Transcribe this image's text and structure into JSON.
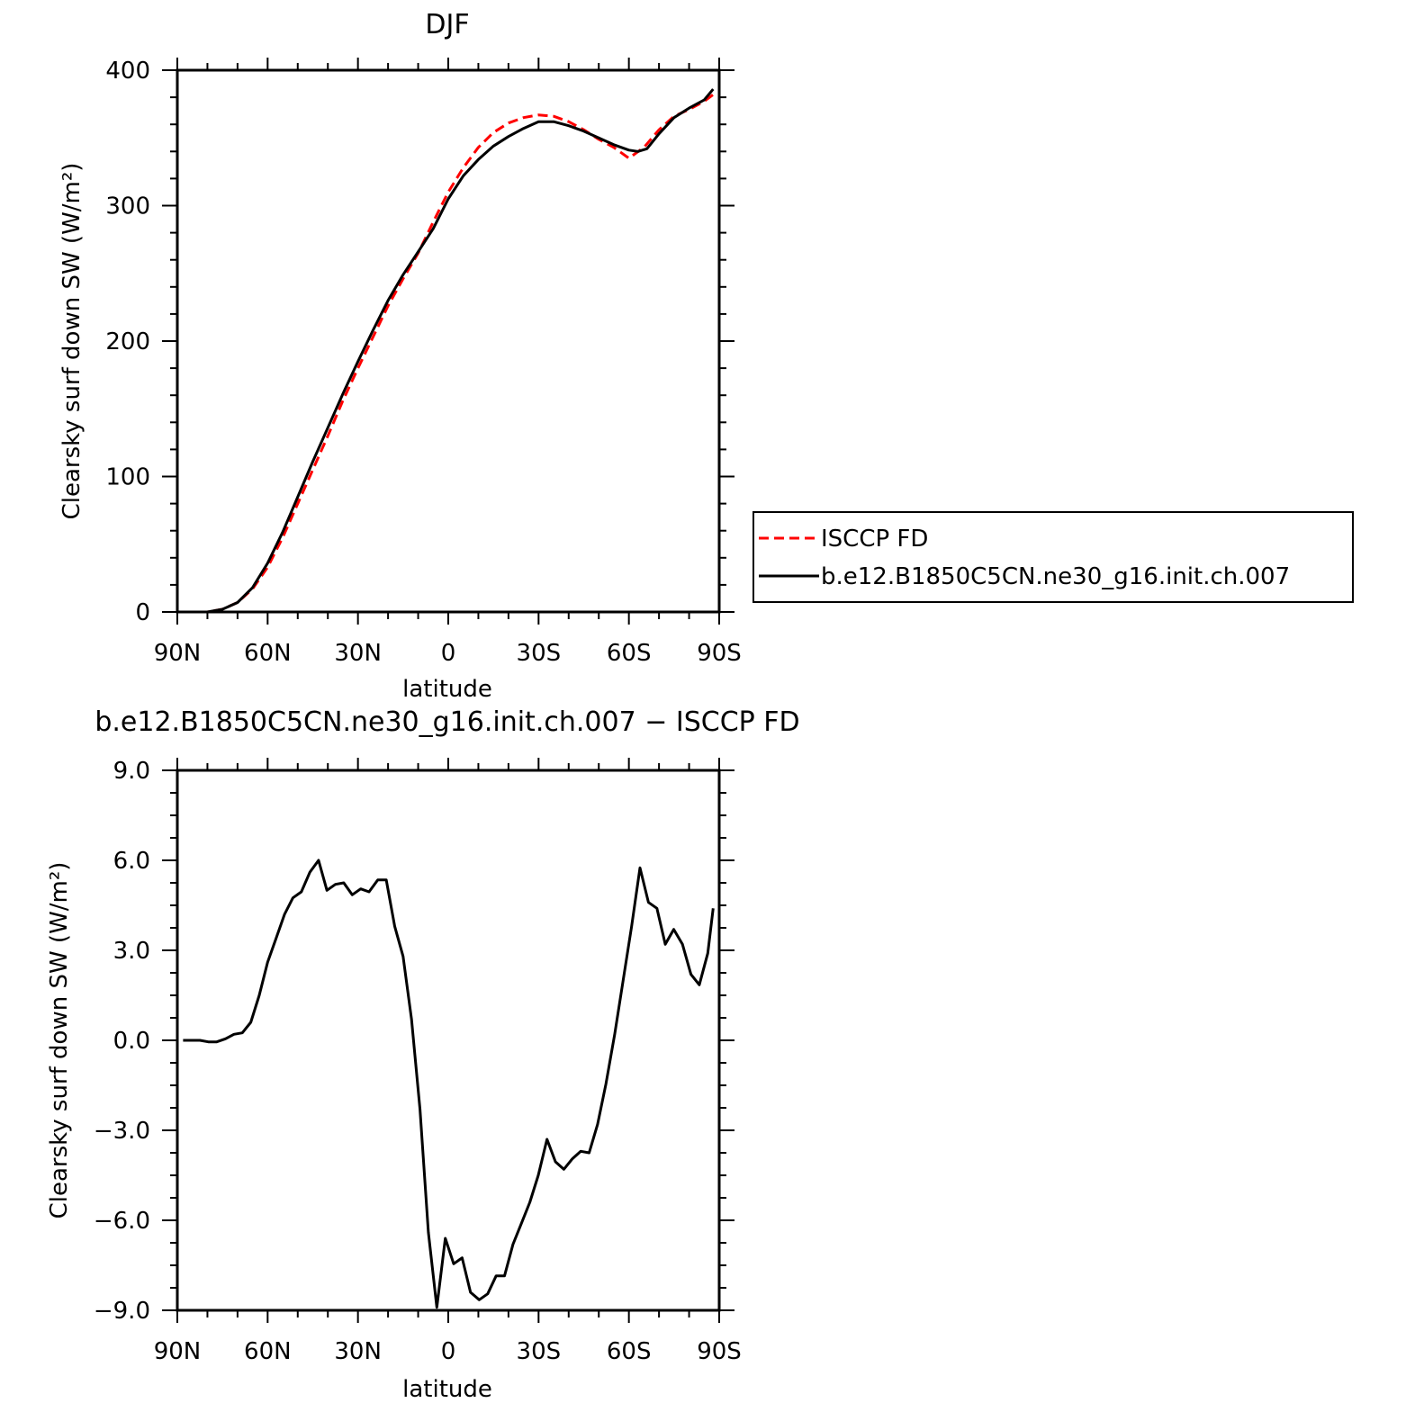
{
  "chart_data": [
    {
      "type": "line",
      "title": "DJF",
      "xlabel": "latitude",
      "ylabel": "Clearsky surf down SW (W/m²)",
      "xlim": [
        90,
        -90
      ],
      "ylim": [
        0,
        400
      ],
      "xticks": [
        "90N",
        "60N",
        "30N",
        "0",
        "30S",
        "60S",
        "90S"
      ],
      "yticks": [
        "0",
        "100",
        "200",
        "300",
        "400"
      ],
      "legend": "right",
      "series": [
        {
          "name": "ISCCP FD",
          "color": "#ff0000",
          "dash": "dashed",
          "x": [
            88,
            85,
            80,
            75,
            70,
            65,
            60,
            55,
            50,
            45,
            40,
            35,
            30,
            25,
            20,
            15,
            10,
            5,
            0,
            -5,
            -10,
            -15,
            -20,
            -25,
            -30,
            -35,
            -40,
            -45,
            -50,
            -55,
            -60,
            -65,
            -70,
            -75,
            -80,
            -85,
            -88
          ],
          "y": [
            0,
            0,
            0,
            2,
            7,
            17,
            33,
            55,
            80,
            105,
            130,
            156,
            180,
            203,
            226,
            246,
            265,
            288,
            310,
            328,
            343,
            354,
            361,
            365,
            367,
            366,
            362,
            356,
            349,
            343,
            335,
            343,
            356,
            366,
            371,
            377,
            382
          ]
        },
        {
          "name": "b.e12.B1850C5CN.ne30_g16.init.ch.007",
          "color": "#000000",
          "dash": "solid",
          "x": [
            88,
            85,
            80,
            75,
            70,
            65,
            60,
            55,
            50,
            45,
            40,
            35,
            30,
            25,
            20,
            15,
            10,
            5,
            0,
            -5,
            -10,
            -15,
            -20,
            -25,
            -30,
            -35,
            -40,
            -45,
            -50,
            -55,
            -60,
            -63,
            -66,
            -70,
            -75,
            -80,
            -85,
            -88
          ],
          "y": [
            0,
            0,
            0,
            2,
            7,
            18,
            36,
            59,
            85,
            111,
            136,
            161,
            185,
            208,
            230,
            249,
            266,
            283,
            305,
            322,
            334,
            344,
            351,
            357,
            362,
            362,
            359,
            355,
            350,
            345,
            341,
            340,
            342,
            353,
            365,
            372,
            378,
            386
          ]
        }
      ]
    },
    {
      "type": "line",
      "title": "b.e12.B1850C5CN.ne30_g16.init.ch.007 − ISCCP FD",
      "xlabel": "latitude",
      "ylabel": "Clearsky surf down SW (W/m²)",
      "xlim": [
        90,
        -90
      ],
      "ylim": [
        -9,
        9
      ],
      "xticks": [
        "90N",
        "60N",
        "30N",
        "0",
        "30S",
        "60S",
        "90S"
      ],
      "yticks": [
        "−9.0",
        "−6.0",
        "−3.0",
        "0.0",
        "3.0",
        "6.0",
        "9.0"
      ],
      "series": [
        {
          "color": "#000000",
          "x": [
            88.1,
            85.3,
            82.5,
            79.7,
            76.9,
            74.0,
            71.2,
            68.4,
            65.6,
            62.8,
            60.0,
            57.2,
            54.4,
            51.6,
            48.8,
            46.0,
            43.1,
            40.3,
            37.5,
            34.7,
            31.9,
            29.1,
            26.3,
            23.4,
            20.6,
            17.8,
            15.0,
            12.2,
            9.4,
            6.6,
            3.8,
            1.0,
            -1.8,
            -4.6,
            -7.4,
            -10.3,
            -13.1,
            -15.9,
            -18.7,
            -21.5,
            -24.3,
            -27.1,
            -29.9,
            -32.8,
            -35.6,
            -38.4,
            -41.2,
            -44.0,
            -46.8,
            -49.6,
            -52.4,
            -55.3,
            -58.1,
            -60.9,
            -63.7,
            -66.5,
            -69.3,
            -72.1,
            -74.9,
            -77.8,
            -80.6,
            -83.4,
            -86.2,
            -88.0
          ],
          "y": [
            0.0,
            0.0,
            0.0,
            -0.05,
            -0.05,
            0.05,
            0.2,
            0.25,
            0.6,
            1.5,
            2.6,
            3.4,
            4.2,
            4.75,
            4.95,
            5.6,
            6.0,
            5.0,
            5.2,
            5.25,
            4.85,
            5.05,
            4.95,
            5.35,
            5.35,
            3.8,
            2.8,
            0.7,
            -2.3,
            -6.4,
            -8.9,
            -6.6,
            -7.45,
            -7.25,
            -8.4,
            -8.65,
            -8.45,
            -7.85,
            -7.85,
            -6.8,
            -6.1,
            -5.4,
            -4.5,
            -3.3,
            -4.05,
            -4.3,
            -3.95,
            -3.7,
            -3.75,
            -2.8,
            -1.45,
            0.2,
            2.0,
            3.8,
            5.75,
            4.6,
            4.4,
            3.2,
            3.7,
            3.2,
            2.2,
            1.85,
            2.9,
            4.4
          ]
        }
      ]
    }
  ]
}
